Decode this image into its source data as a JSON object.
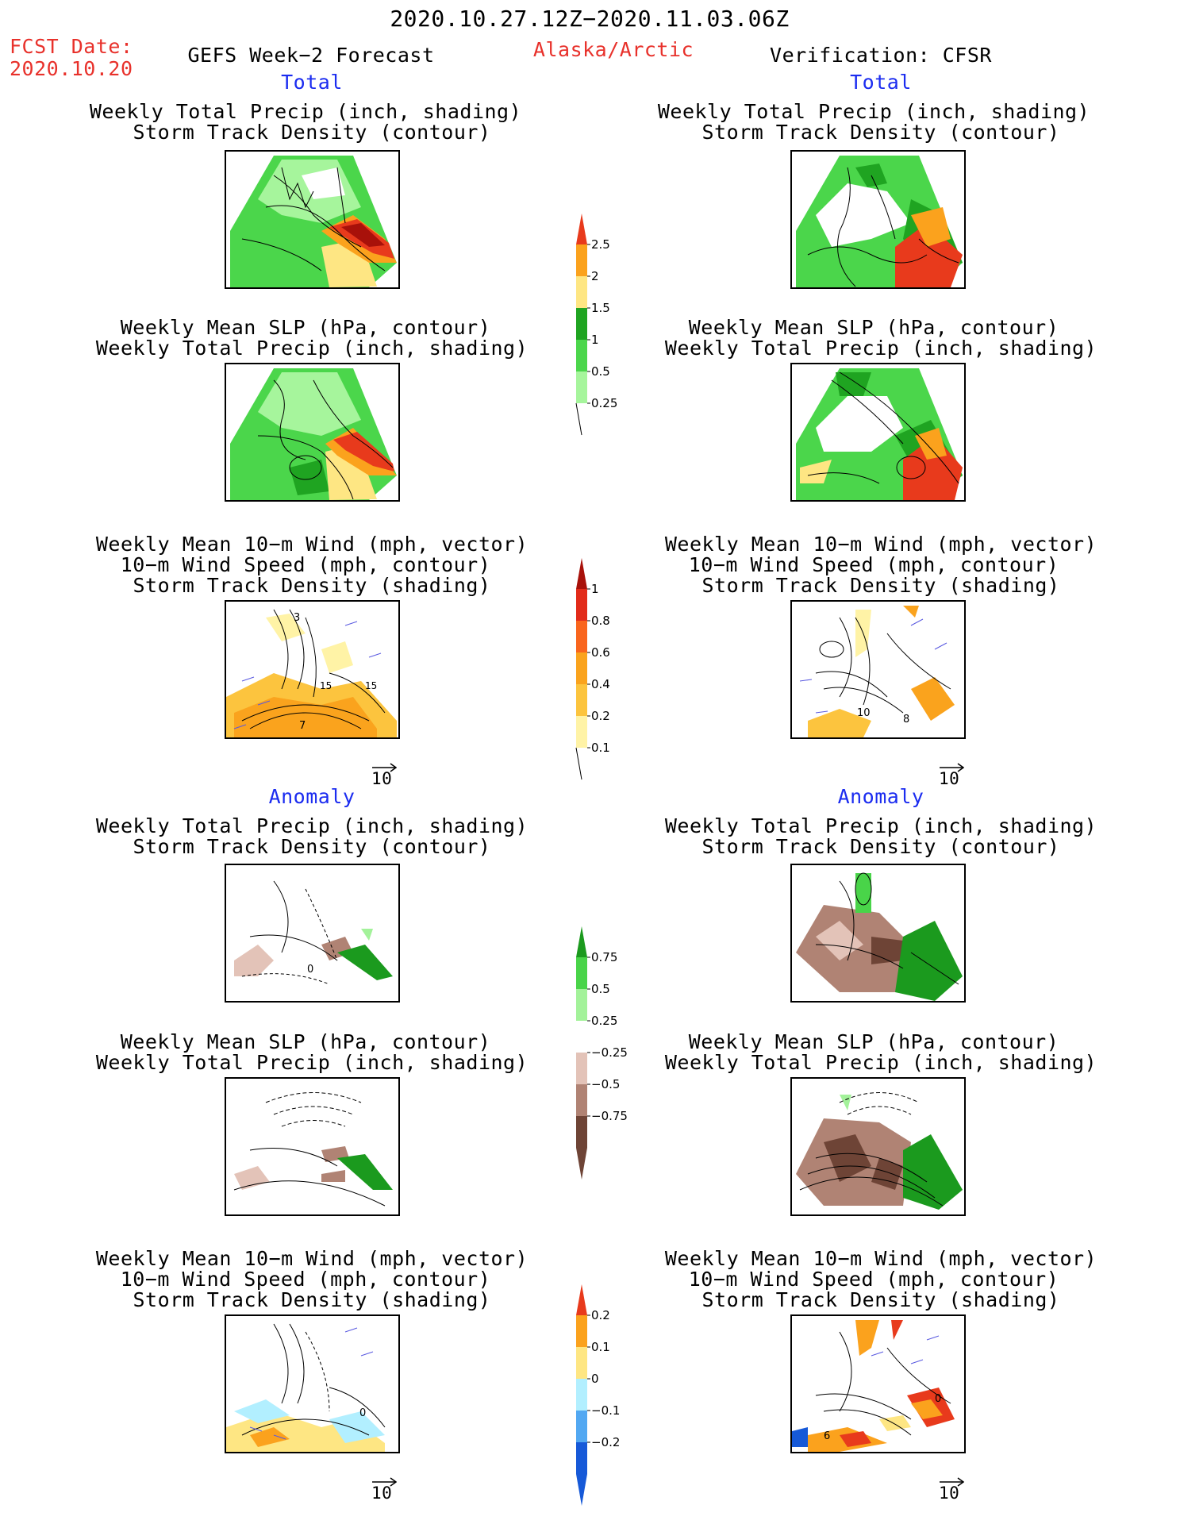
{
  "header": {
    "date_range": "2020.10.27.12Z−2020.11.03.06Z",
    "fcst_label": "FCST Date:",
    "fcst_date": "2020.10.20",
    "model": "GEFS Week−2 Forecast",
    "region": "Alaska/Arctic",
    "verification": "Verification: CFSR"
  },
  "sections": {
    "total": "Total",
    "anomaly": "Anomaly"
  },
  "titles": {
    "precip_storm": [
      "Weekly Total Precip (inch, shading)",
      "Storm Track Density (contour)"
    ],
    "slp_precip": [
      "Weekly Mean SLP (hPa, contour)",
      "Weekly Total Precip (inch, shading)"
    ],
    "wind_storm": [
      "Weekly Mean 10−m Wind (mph, vector)",
      "10−m Wind Speed (mph, contour)",
      "Storm Track Density (shading)"
    ]
  },
  "vector_ref": "10",
  "colorbars": {
    "precip_total": {
      "labels": [
        "2.5",
        "2",
        "1.5",
        "1",
        "0.5",
        "0.25"
      ],
      "colors": [
        "#e83a1c",
        "#fba21d",
        "#fee683",
        "#1fa421",
        "#4bd64b",
        "#a6f59c"
      ]
    },
    "storm_total": {
      "labels": [
        "1",
        "0.8",
        "0.6",
        "0.4",
        "0.2",
        "0.1"
      ],
      "colors": [
        "#a8110a",
        "#e22b1a",
        "#f9651d",
        "#faa31d",
        "#fcc43e",
        "#fff3a6"
      ]
    },
    "precip_anom": {
      "labels": [
        "0.75",
        "0.5",
        "0.25",
        "−0.25",
        "−0.5",
        "−0.75"
      ],
      "colors": [
        "#1b9a1e",
        "#49d449",
        "#a3f29a",
        "#ffffff",
        "#e3c3b8",
        "#b08374",
        "#6e4436"
      ]
    },
    "storm_anom": {
      "labels": [
        "0.2",
        "0.1",
        "0",
        "−0.1",
        "−0.2"
      ],
      "colors": [
        "#e83a1c",
        "#fba21d",
        "#fee683",
        "#b2efff",
        "#52a8f2",
        "#1659d8"
      ]
    }
  },
  "contour_labels": {
    "fc_total_wind": [
      "3",
      "7",
      "15",
      "15"
    ],
    "obs_total_wind": [
      "10",
      "8"
    ],
    "fc_anom_precip": [
      "0"
    ],
    "fc_anom_wind": [
      "0"
    ],
    "obs_anom_wind": [
      "0",
      "6"
    ]
  }
}
